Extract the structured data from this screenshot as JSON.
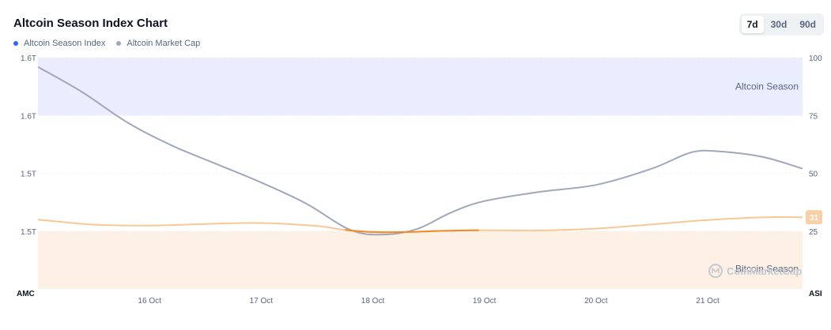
{
  "header": {
    "title": "Altcoin Season Index Chart"
  },
  "range_toggle": {
    "options": [
      "7d",
      "30d",
      "90d"
    ],
    "selected": "7d"
  },
  "chart_data": {
    "type": "line",
    "title": "Altcoin Season Index Chart",
    "x_labels": [
      "16 Oct",
      "17 Oct",
      "18 Oct",
      "19 Oct",
      "20 Oct",
      "21 Oct"
    ],
    "x_range": [
      15.0,
      21.85
    ],
    "left_axis": {
      "title": "AMC",
      "tick_labels": [
        "1.6T",
        "1.6T",
        "1.5T",
        "1.5T"
      ]
    },
    "right_axis": {
      "title": "ASI",
      "ticks": [
        25,
        50,
        75,
        100
      ],
      "range": [
        0,
        100
      ]
    },
    "grid": true,
    "legend_position": "top-left",
    "zones": [
      {
        "label": "Altcoin Season",
        "from": 75,
        "to": 100,
        "color": "#eaedfd"
      },
      {
        "label": "Bitcoin Season",
        "from": 0,
        "to": 25,
        "color": "#fdf1e6"
      }
    ],
    "current_badge": {
      "value": 31,
      "color": "#f8cfa6"
    },
    "watermark": "CoinMarketCap",
    "series": [
      {
        "name": "Altcoin Season Index",
        "axis": "right",
        "color": "#f5c896",
        "highlight_color": "#f28b24",
        "highlight_range": [
          17.75,
          18.95
        ],
        "points": [
          [
            15.0,
            30
          ],
          [
            15.5,
            27.8
          ],
          [
            16.0,
            27.4
          ],
          [
            16.5,
            28.1
          ],
          [
            17.0,
            28.5
          ],
          [
            17.5,
            27.2
          ],
          [
            17.75,
            25.5
          ],
          [
            18.0,
            24.6
          ],
          [
            18.3,
            24.6
          ],
          [
            18.6,
            25.1
          ],
          [
            18.95,
            25.4
          ],
          [
            19.5,
            25.3
          ],
          [
            20.0,
            26.1
          ],
          [
            20.5,
            27.9
          ],
          [
            21.0,
            29.8
          ],
          [
            21.5,
            31.0
          ],
          [
            21.85,
            31.0
          ]
        ]
      },
      {
        "name": "Altcoin Market Cap",
        "axis": "right",
        "color": "#a1a7bb",
        "points": [
          [
            15.0,
            96
          ],
          [
            15.4,
            85
          ],
          [
            15.8,
            72
          ],
          [
            16.2,
            62
          ],
          [
            16.6,
            54
          ],
          [
            17.0,
            46
          ],
          [
            17.4,
            37
          ],
          [
            17.8,
            25.5
          ],
          [
            18.1,
            23.5
          ],
          [
            18.4,
            26
          ],
          [
            18.7,
            33
          ],
          [
            19.0,
            38
          ],
          [
            19.5,
            42
          ],
          [
            20.0,
            45
          ],
          [
            20.5,
            52
          ],
          [
            20.85,
            59
          ],
          [
            21.1,
            59.5
          ],
          [
            21.5,
            57
          ],
          [
            21.85,
            52
          ]
        ]
      }
    ]
  }
}
